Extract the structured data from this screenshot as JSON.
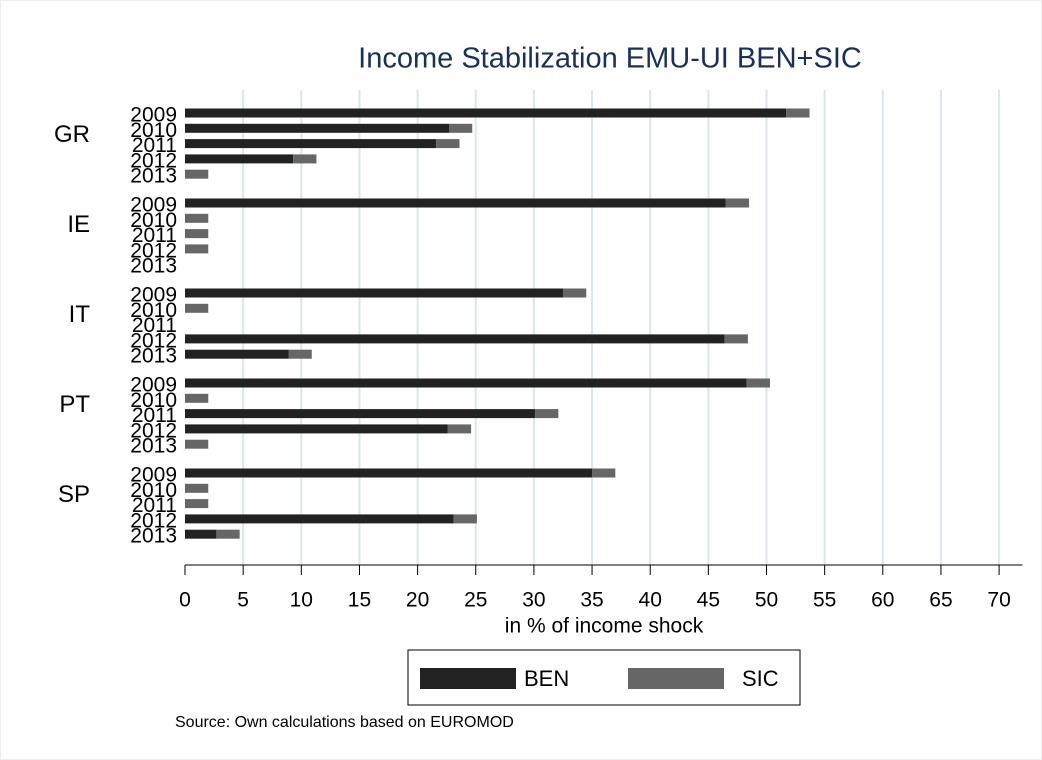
{
  "chart_data": {
    "type": "bar",
    "orientation": "horizontal",
    "stacked": true,
    "title": "Income Stabilization EMU-UI BEN+SIC",
    "xlabel": "in % of income shock",
    "source": "Source: Own calculations based on EUROMOD",
    "groups": [
      "GR",
      "IE",
      "IT",
      "PT",
      "SP"
    ],
    "categories": [
      "2009",
      "2010",
      "2011",
      "2012",
      "2013",
      "2009",
      "2010",
      "2011",
      "2012",
      "2013",
      "2009",
      "2010",
      "2011",
      "2012",
      "2013",
      "2009",
      "2010",
      "2011",
      "2012",
      "2013",
      "2009",
      "2010",
      "2011",
      "2012",
      "2013"
    ],
    "series": [
      {
        "name": "BEN",
        "color": "#222222",
        "values": [
          51.7,
          22.7,
          21.6,
          9.3,
          0,
          46.5,
          0,
          0,
          0,
          0,
          32.5,
          0,
          0,
          46.4,
          8.9,
          48.3,
          0,
          30.1,
          22.6,
          0,
          35.0,
          0,
          0,
          23.1,
          2.7
        ]
      },
      {
        "name": "SIC",
        "color": "#666666",
        "values": [
          2,
          2,
          2,
          2,
          2,
          2,
          2,
          2,
          2,
          0,
          2,
          2,
          0,
          2,
          2,
          2,
          2,
          2,
          2,
          2,
          2,
          2,
          2,
          2,
          2
        ]
      }
    ],
    "xlim": [
      0,
      72
    ],
    "xticks": [
      0,
      5,
      10,
      15,
      20,
      25,
      30,
      35,
      40,
      45,
      50,
      55,
      60,
      65,
      70
    ],
    "grid": true
  }
}
